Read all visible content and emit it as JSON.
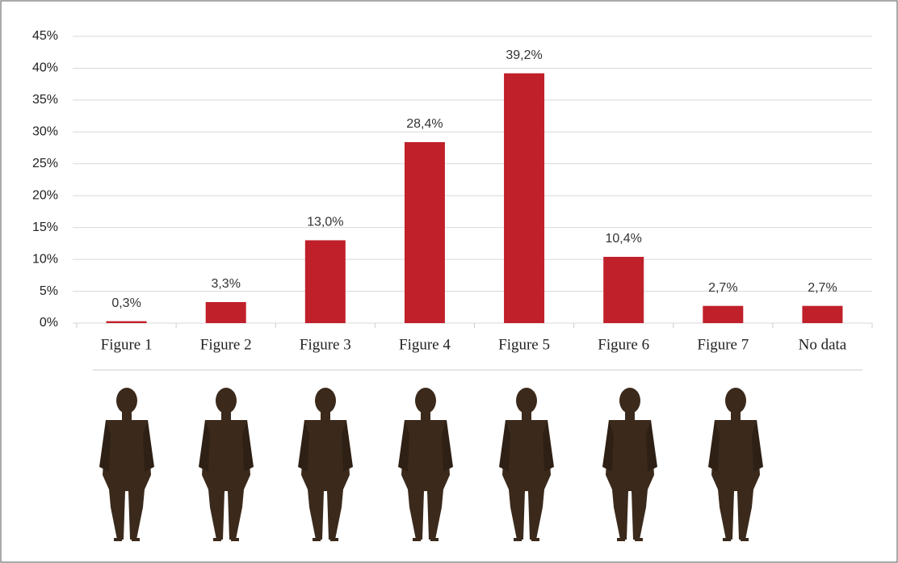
{
  "chart_data": {
    "type": "bar",
    "categories": [
      "Figure 1",
      "Figure 2",
      "Figure 3",
      "Figure 4",
      "Figure 5",
      "Figure 6",
      "Figure 7",
      "No data"
    ],
    "values": [
      0.3,
      3.3,
      13.0,
      28.4,
      39.2,
      10.4,
      2.7,
      2.7
    ],
    "value_labels": [
      "0,3%",
      "3,3%",
      "13,0%",
      "28,4%",
      "39,2%",
      "10,4%",
      "2,7%",
      "2,7%"
    ],
    "color": "#c0202a",
    "ylim": [
      0,
      45
    ],
    "yticks": [
      {
        "value": 0,
        "label": "0%"
      },
      {
        "value": 5,
        "label": "5%"
      },
      {
        "value": 10,
        "label": "10%"
      },
      {
        "value": 15,
        "label": "15%"
      },
      {
        "value": 20,
        "label": "20%"
      },
      {
        "value": 25,
        "label": "25%"
      },
      {
        "value": 30,
        "label": "30%"
      },
      {
        "value": 35,
        "label": "35%"
      },
      {
        "value": 40,
        "label": "40%"
      },
      {
        "value": 45,
        "label": "45%"
      }
    ],
    "grid": true
  }
}
